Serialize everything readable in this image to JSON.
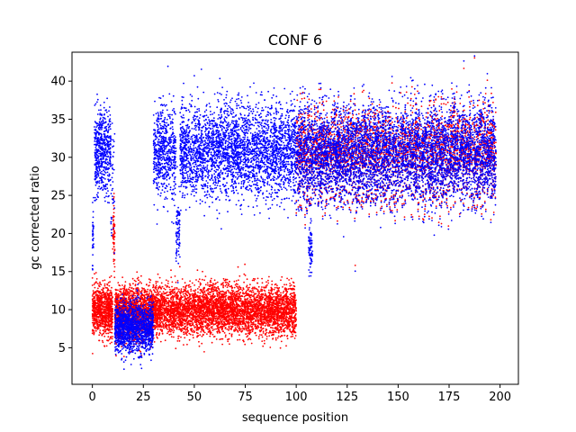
{
  "chart_data": {
    "type": "scatter",
    "title": "CONF 6",
    "xlabel": "sequence position",
    "ylabel": "gc corrected ratio",
    "xlim": [
      -10,
      209
    ],
    "ylim": [
      0.2,
      43.8
    ],
    "xticks": [
      0,
      25,
      50,
      75,
      100,
      125,
      150,
      175,
      200
    ],
    "yticks": [
      5,
      10,
      15,
      20,
      25,
      30,
      35,
      40
    ],
    "grid": false,
    "legend": "none",
    "series": [
      {
        "color": "#ff0000",
        "segments": [
          {
            "x": [
              0,
              10
            ],
            "mean": 9.8,
            "spread": 1.6,
            "density": 90
          },
          {
            "x": [
              10,
              11
            ],
            "mean": 20.0,
            "spread": 2.2,
            "density": 60
          },
          {
            "x": [
              11,
              30
            ],
            "mean": 9.6,
            "spread": 1.7,
            "density": 90
          },
          {
            "x": [
              30,
              100
            ],
            "mean": 9.9,
            "spread": 1.6,
            "density": 70
          },
          {
            "x": [
              100,
              198
            ],
            "mean": 30.2,
            "spread": 3.0,
            "density": 40
          }
        ]
      },
      {
        "color": "#0000ff",
        "segments": [
          {
            "x": [
              0,
              0.6
            ],
            "mean": 19.8,
            "spread": 2.2,
            "density": 60
          },
          {
            "x": [
              1,
              9
            ],
            "mean": 30.8,
            "spread": 2.8,
            "density": 70
          },
          {
            "x": [
              9,
              11
            ],
            "mean": 25.0,
            "spread": 4.0,
            "density": 20
          },
          {
            "x": [
              11,
              30
            ],
            "mean": 7.6,
            "spread": 1.6,
            "density": 80
          },
          {
            "x": [
              30,
              41
            ],
            "mean": 30.6,
            "spread": 3.0,
            "density": 55
          },
          {
            "x": [
              41,
              43
            ],
            "mean": 20.5,
            "spread": 2.5,
            "density": 40
          },
          {
            "x": [
              43,
              100
            ],
            "mean": 30.8,
            "spread": 3.0,
            "density": 55
          },
          {
            "x": [
              100,
              198
            ],
            "mean": 30.4,
            "spread": 3.2,
            "density": 60
          },
          {
            "x": [
              106,
              108
            ],
            "mean": 18.5,
            "spread": 2.2,
            "density": 40
          }
        ]
      }
    ]
  }
}
